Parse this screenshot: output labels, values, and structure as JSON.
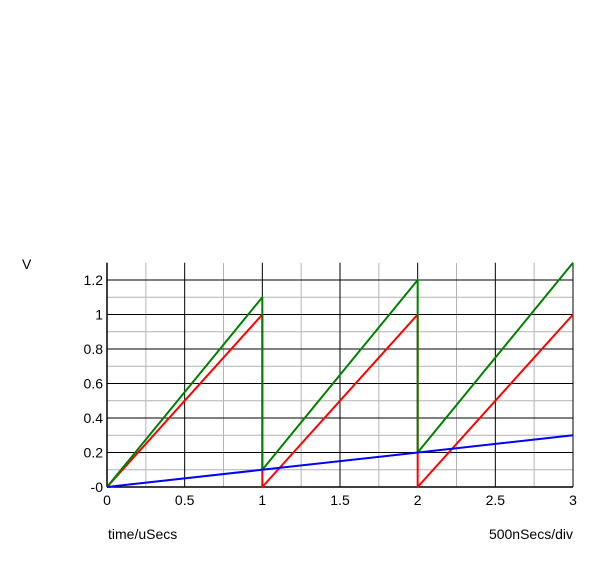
{
  "chart_data": {
    "type": "line",
    "ylabel": "V",
    "xlabel": "time/uSecs",
    "scale_note": "500nSecs/div",
    "xlim": [
      0,
      3
    ],
    "ylim": [
      0,
      1.3
    ],
    "x_ticks": [
      0,
      0.5,
      1,
      1.5,
      2,
      2.5,
      3
    ],
    "x_tick_labels": [
      "0",
      "0.5",
      "1",
      "1.5",
      "2",
      "2.5",
      "3"
    ],
    "y_ticks": [
      0,
      0.2,
      0.4,
      0.6,
      0.8,
      1,
      1.2
    ],
    "y_tick_labels": [
      "-0",
      "0.2",
      "0.4",
      "0.6",
      "0.8",
      "1",
      "1.2"
    ],
    "grid": true,
    "series": [
      {
        "color": "#ff0000",
        "x": [
          0,
          1,
          1,
          2,
          2,
          3
        ],
        "y": [
          0,
          1,
          0,
          1,
          0,
          1
        ]
      },
      {
        "color": "#008000",
        "x": [
          0,
          1,
          1,
          2,
          2,
          3
        ],
        "y": [
          0,
          1.1,
          0.1,
          1.2,
          0.2,
          1.3
        ]
      },
      {
        "color": "#0000ff",
        "x": [
          0,
          3
        ],
        "y": [
          0,
          0.3
        ]
      }
    ]
  }
}
